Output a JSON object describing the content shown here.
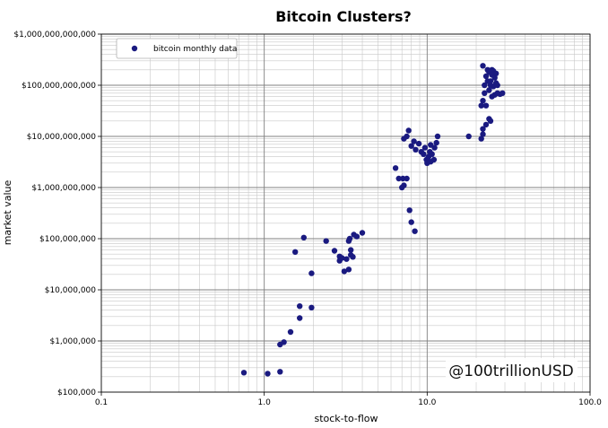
{
  "chart_data": {
    "type": "scatter",
    "title": "Bitcoin Clusters?",
    "xlabel": "stock-to-flow",
    "ylabel": "market value",
    "x_scale": "log",
    "y_scale": "log",
    "xlim": [
      0.1,
      100
    ],
    "ylim": [
      100000,
      1000000000000
    ],
    "grid": true,
    "legend_position": "top-left",
    "x_tick_labels": [
      "0.1",
      "1.0",
      "10.0",
      "100.0"
    ],
    "x_ticks": [
      0.1,
      1,
      10,
      100
    ],
    "y_tick_labels": [
      "$100,000",
      "$1,000,000",
      "$10,000,000",
      "$100,000,000",
      "$1,000,000,000",
      "$10,000,000,000",
      "$100,000,000,000",
      "$1,000,000,000,000"
    ],
    "y_ticks": [
      100000,
      1000000,
      10000000,
      100000000,
      1000000000,
      10000000000,
      100000000000,
      1000000000000
    ],
    "watermark": "@100trillionUSD",
    "colors": {
      "marker": "#1a1a80",
      "grid_major": "#808080",
      "grid_minor": "#c8c8c8"
    },
    "series": [
      {
        "name": "bitcoin monthly data",
        "points": [
          [
            0.75,
            240000
          ],
          [
            1.05,
            230000
          ],
          [
            1.25,
            250000
          ],
          [
            1.25,
            850000
          ],
          [
            1.32,
            950000
          ],
          [
            1.45,
            1500000
          ],
          [
            1.65,
            2800000
          ],
          [
            1.65,
            4800000
          ],
          [
            1.95,
            4500000
          ],
          [
            1.55,
            55000000
          ],
          [
            1.75,
            105000000
          ],
          [
            1.95,
            21000000
          ],
          [
            2.4,
            90000000
          ],
          [
            2.7,
            58000000
          ],
          [
            2.9,
            37000000
          ],
          [
            2.9,
            45000000
          ],
          [
            3.0,
            42000000
          ],
          [
            3.1,
            23000000
          ],
          [
            3.2,
            40000000
          ],
          [
            3.3,
            25000000
          ],
          [
            3.3,
            90000000
          ],
          [
            3.35,
            100000000
          ],
          [
            3.4,
            60000000
          ],
          [
            3.4,
            48000000
          ],
          [
            3.5,
            44000000
          ],
          [
            3.55,
            120000000
          ],
          [
            3.7,
            110000000
          ],
          [
            4.0,
            130000000
          ],
          [
            6.4,
            2400000000
          ],
          [
            6.7,
            1500000000
          ],
          [
            7.0,
            1000000000
          ],
          [
            7.1,
            1500000000
          ],
          [
            7.2,
            1100000000
          ],
          [
            7.5,
            1500000000
          ],
          [
            7.2,
            9000000000
          ],
          [
            7.5,
            10000000000
          ],
          [
            7.7,
            13000000000
          ],
          [
            7.8,
            360000000
          ],
          [
            8.0,
            210000000
          ],
          [
            8.4,
            140000000
          ],
          [
            8.0,
            6500000000
          ],
          [
            8.3,
            8000000000
          ],
          [
            8.5,
            5500000000
          ],
          [
            8.9,
            7200000000
          ],
          [
            9.2,
            5000000000
          ],
          [
            9.5,
            4500000000
          ],
          [
            9.7,
            6000000000
          ],
          [
            9.9,
            3500000000
          ],
          [
            10.0,
            3000000000
          ],
          [
            10.2,
            4000000000
          ],
          [
            10.4,
            5000000000
          ],
          [
            10.5,
            3200000000
          ],
          [
            10.7,
            4500000000
          ],
          [
            11.0,
            3500000000
          ],
          [
            11.1,
            6000000000
          ],
          [
            11.4,
            7500000000
          ],
          [
            11.6,
            10000000000
          ],
          [
            10.5,
            6800000000
          ],
          [
            18.0,
            10000000000
          ],
          [
            21.5,
            9000000000
          ],
          [
            22.0,
            11000000000
          ],
          [
            22.0,
            14000000000
          ],
          [
            23.0,
            17000000000
          ],
          [
            24.0,
            22000000000
          ],
          [
            24.5,
            20000000000
          ],
          [
            21.5,
            40000000000
          ],
          [
            22.0,
            50000000000
          ],
          [
            23.0,
            40000000000
          ],
          [
            22.5,
            70000000000
          ],
          [
            24.0,
            80000000000
          ],
          [
            25.0,
            60000000000
          ],
          [
            25.5,
            95000000000
          ],
          [
            26.0,
            65000000000
          ],
          [
            27.0,
            70000000000
          ],
          [
            28.0,
            67000000000
          ],
          [
            29.0,
            70000000000
          ],
          [
            22.0,
            240000000000
          ],
          [
            23.0,
            150000000000
          ],
          [
            23.5,
            200000000000
          ],
          [
            24.0,
            180000000000
          ],
          [
            24.5,
            120000000000
          ],
          [
            25.0,
            160000000000
          ],
          [
            25.5,
            190000000000
          ],
          [
            26.0,
            140000000000
          ],
          [
            26.5,
            110000000000
          ],
          [
            22.5,
            100000000000
          ],
          [
            23.5,
            120000000000
          ],
          [
            24.5,
            100000000000
          ],
          [
            27.0,
            100000000000
          ],
          [
            25.0,
            200000000000
          ],
          [
            26.5,
            170000000000
          ]
        ]
      }
    ]
  }
}
